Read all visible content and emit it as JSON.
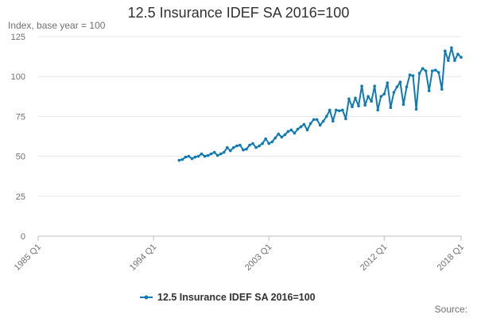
{
  "chart_data": {
    "type": "line",
    "title": "12.5 Insurance IDEF SA 2016=100",
    "ylabel": "Index, base year = 100",
    "xlabel": "",
    "ylim": [
      0,
      125
    ],
    "yticks": [
      0,
      25,
      50,
      75,
      100,
      125
    ],
    "xlim": [
      1985,
      2018
    ],
    "xticks": [
      {
        "x": 1985,
        "label": "1985 Q1"
      },
      {
        "x": 1994,
        "label": "1994 Q1"
      },
      {
        "x": 2003,
        "label": "2003 Q1"
      },
      {
        "x": 2012,
        "label": "2012 Q1"
      },
      {
        "x": 2018,
        "label": "2018 Q1"
      }
    ],
    "grid": "horizontal",
    "legend": "bottom",
    "source_label": "Source:",
    "colors": {
      "series": "#0f7ab4",
      "grid": "#e6e6e6",
      "axis": "#bebebe",
      "text": "#323132"
    },
    "series": [
      {
        "name": "12.5 Insurance IDEF SA 2016=100",
        "x": [
          1996.0,
          1996.25,
          1996.5,
          1996.75,
          1997.0,
          1997.25,
          1997.5,
          1997.75,
          1998.0,
          1998.25,
          1998.5,
          1998.75,
          1999.0,
          1999.25,
          1999.5,
          1999.75,
          2000.0,
          2000.25,
          2000.5,
          2000.75,
          2001.0,
          2001.25,
          2001.5,
          2001.75,
          2002.0,
          2002.25,
          2002.5,
          2002.75,
          2003.0,
          2003.25,
          2003.5,
          2003.75,
          2004.0,
          2004.25,
          2004.5,
          2004.75,
          2005.0,
          2005.25,
          2005.5,
          2005.75,
          2006.0,
          2006.25,
          2006.5,
          2006.75,
          2007.0,
          2007.25,
          2007.5,
          2007.75,
          2008.0,
          2008.25,
          2008.5,
          2008.75,
          2009.0,
          2009.25,
          2009.5,
          2009.75,
          2010.0,
          2010.25,
          2010.5,
          2010.75,
          2011.0,
          2011.25,
          2011.5,
          2011.75,
          2012.0,
          2012.25,
          2012.5,
          2012.75,
          2013.0,
          2013.25,
          2013.5,
          2013.75,
          2014.0,
          2014.25,
          2014.5,
          2014.75,
          2015.0,
          2015.25,
          2015.5,
          2015.75,
          2016.0,
          2016.25,
          2016.5,
          2016.75,
          2017.0,
          2017.25,
          2017.5,
          2017.75,
          2018.0
        ],
        "values": [
          47.5,
          48,
          49.5,
          50,
          48.5,
          49.5,
          50,
          51.5,
          50,
          50.5,
          51.5,
          52.5,
          50.5,
          51.5,
          52.5,
          55.5,
          53.5,
          55.5,
          56.5,
          57,
          54,
          54.5,
          57,
          58,
          55.5,
          56.5,
          58,
          61,
          58,
          59,
          61.5,
          64,
          62,
          63.5,
          65.5,
          66.5,
          64.5,
          67,
          68.5,
          70,
          66.5,
          70.5,
          73,
          73,
          69.5,
          72,
          75,
          79,
          72,
          79,
          78.5,
          79,
          73.5,
          86,
          81,
          86.5,
          81.5,
          94,
          82,
          87.5,
          84.5,
          94,
          79,
          87.5,
          89,
          96,
          80.5,
          90,
          93.5,
          96.5,
          82.5,
          93.5,
          101,
          100.5,
          79.5,
          102,
          105,
          103.5,
          91,
          103.5,
          104,
          102.5,
          92,
          116,
          110,
          118,
          110,
          114,
          112
        ]
      }
    ]
  }
}
